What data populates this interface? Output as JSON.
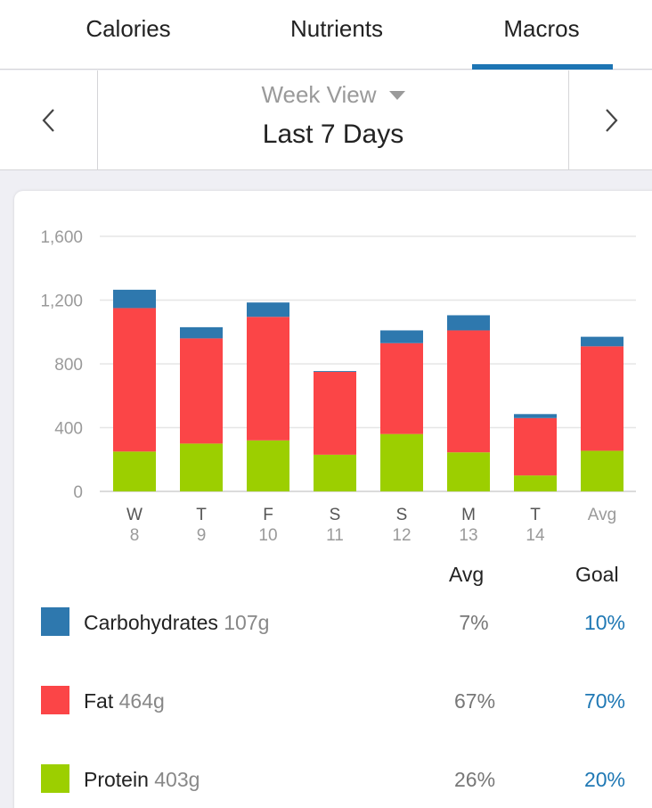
{
  "tabs": [
    {
      "label": "Calories"
    },
    {
      "label": "Nutrients"
    },
    {
      "label": "Macros"
    }
  ],
  "active_tab": "Macros",
  "date_nav": {
    "view_label": "Week View",
    "range_label": "Last 7 Days"
  },
  "colors": {
    "carbs": "#2e78ae",
    "fat": "#fb4547",
    "protein": "#9ccf00",
    "accent": "#1d75b4"
  },
  "chart_data": {
    "type": "bar",
    "stacked": true,
    "categories": [
      {
        "day": "W",
        "date": "8"
      },
      {
        "day": "T",
        "date": "9"
      },
      {
        "day": "F",
        "date": "10"
      },
      {
        "day": "S",
        "date": "11"
      },
      {
        "day": "S",
        "date": "12"
      },
      {
        "day": "M",
        "date": "13"
      },
      {
        "day": "T",
        "date": "14"
      },
      {
        "day": "Avg",
        "date": ""
      }
    ],
    "series": [
      {
        "name": "Protein",
        "color": "#9ccf00",
        "values": [
          250,
          300,
          320,
          230,
          360,
          245,
          100,
          255
        ]
      },
      {
        "name": "Fat",
        "color": "#fb4547",
        "values": [
          900,
          660,
          775,
          520,
          570,
          765,
          360,
          655
        ]
      },
      {
        "name": "Carbohydrates",
        "color": "#2e78ae",
        "values": [
          115,
          70,
          90,
          5,
          80,
          95,
          25,
          60
        ]
      }
    ],
    "yticks": [
      "0",
      "400",
      "800",
      "1,200",
      "1,600"
    ],
    "ylim": [
      0,
      1600
    ],
    "xlabel": "",
    "ylabel": ""
  },
  "legend": {
    "avg_header": "Avg",
    "goal_header": "Goal",
    "rows": [
      {
        "name": "Carbohydrates",
        "grams": "107g",
        "avg": "7%",
        "goal": "10%",
        "color": "#2e78ae"
      },
      {
        "name": "Fat",
        "grams": "464g",
        "avg": "67%",
        "goal": "70%",
        "color": "#fb4547"
      },
      {
        "name": "Protein",
        "grams": "403g",
        "avg": "26%",
        "goal": "20%",
        "color": "#9ccf00"
      }
    ]
  }
}
